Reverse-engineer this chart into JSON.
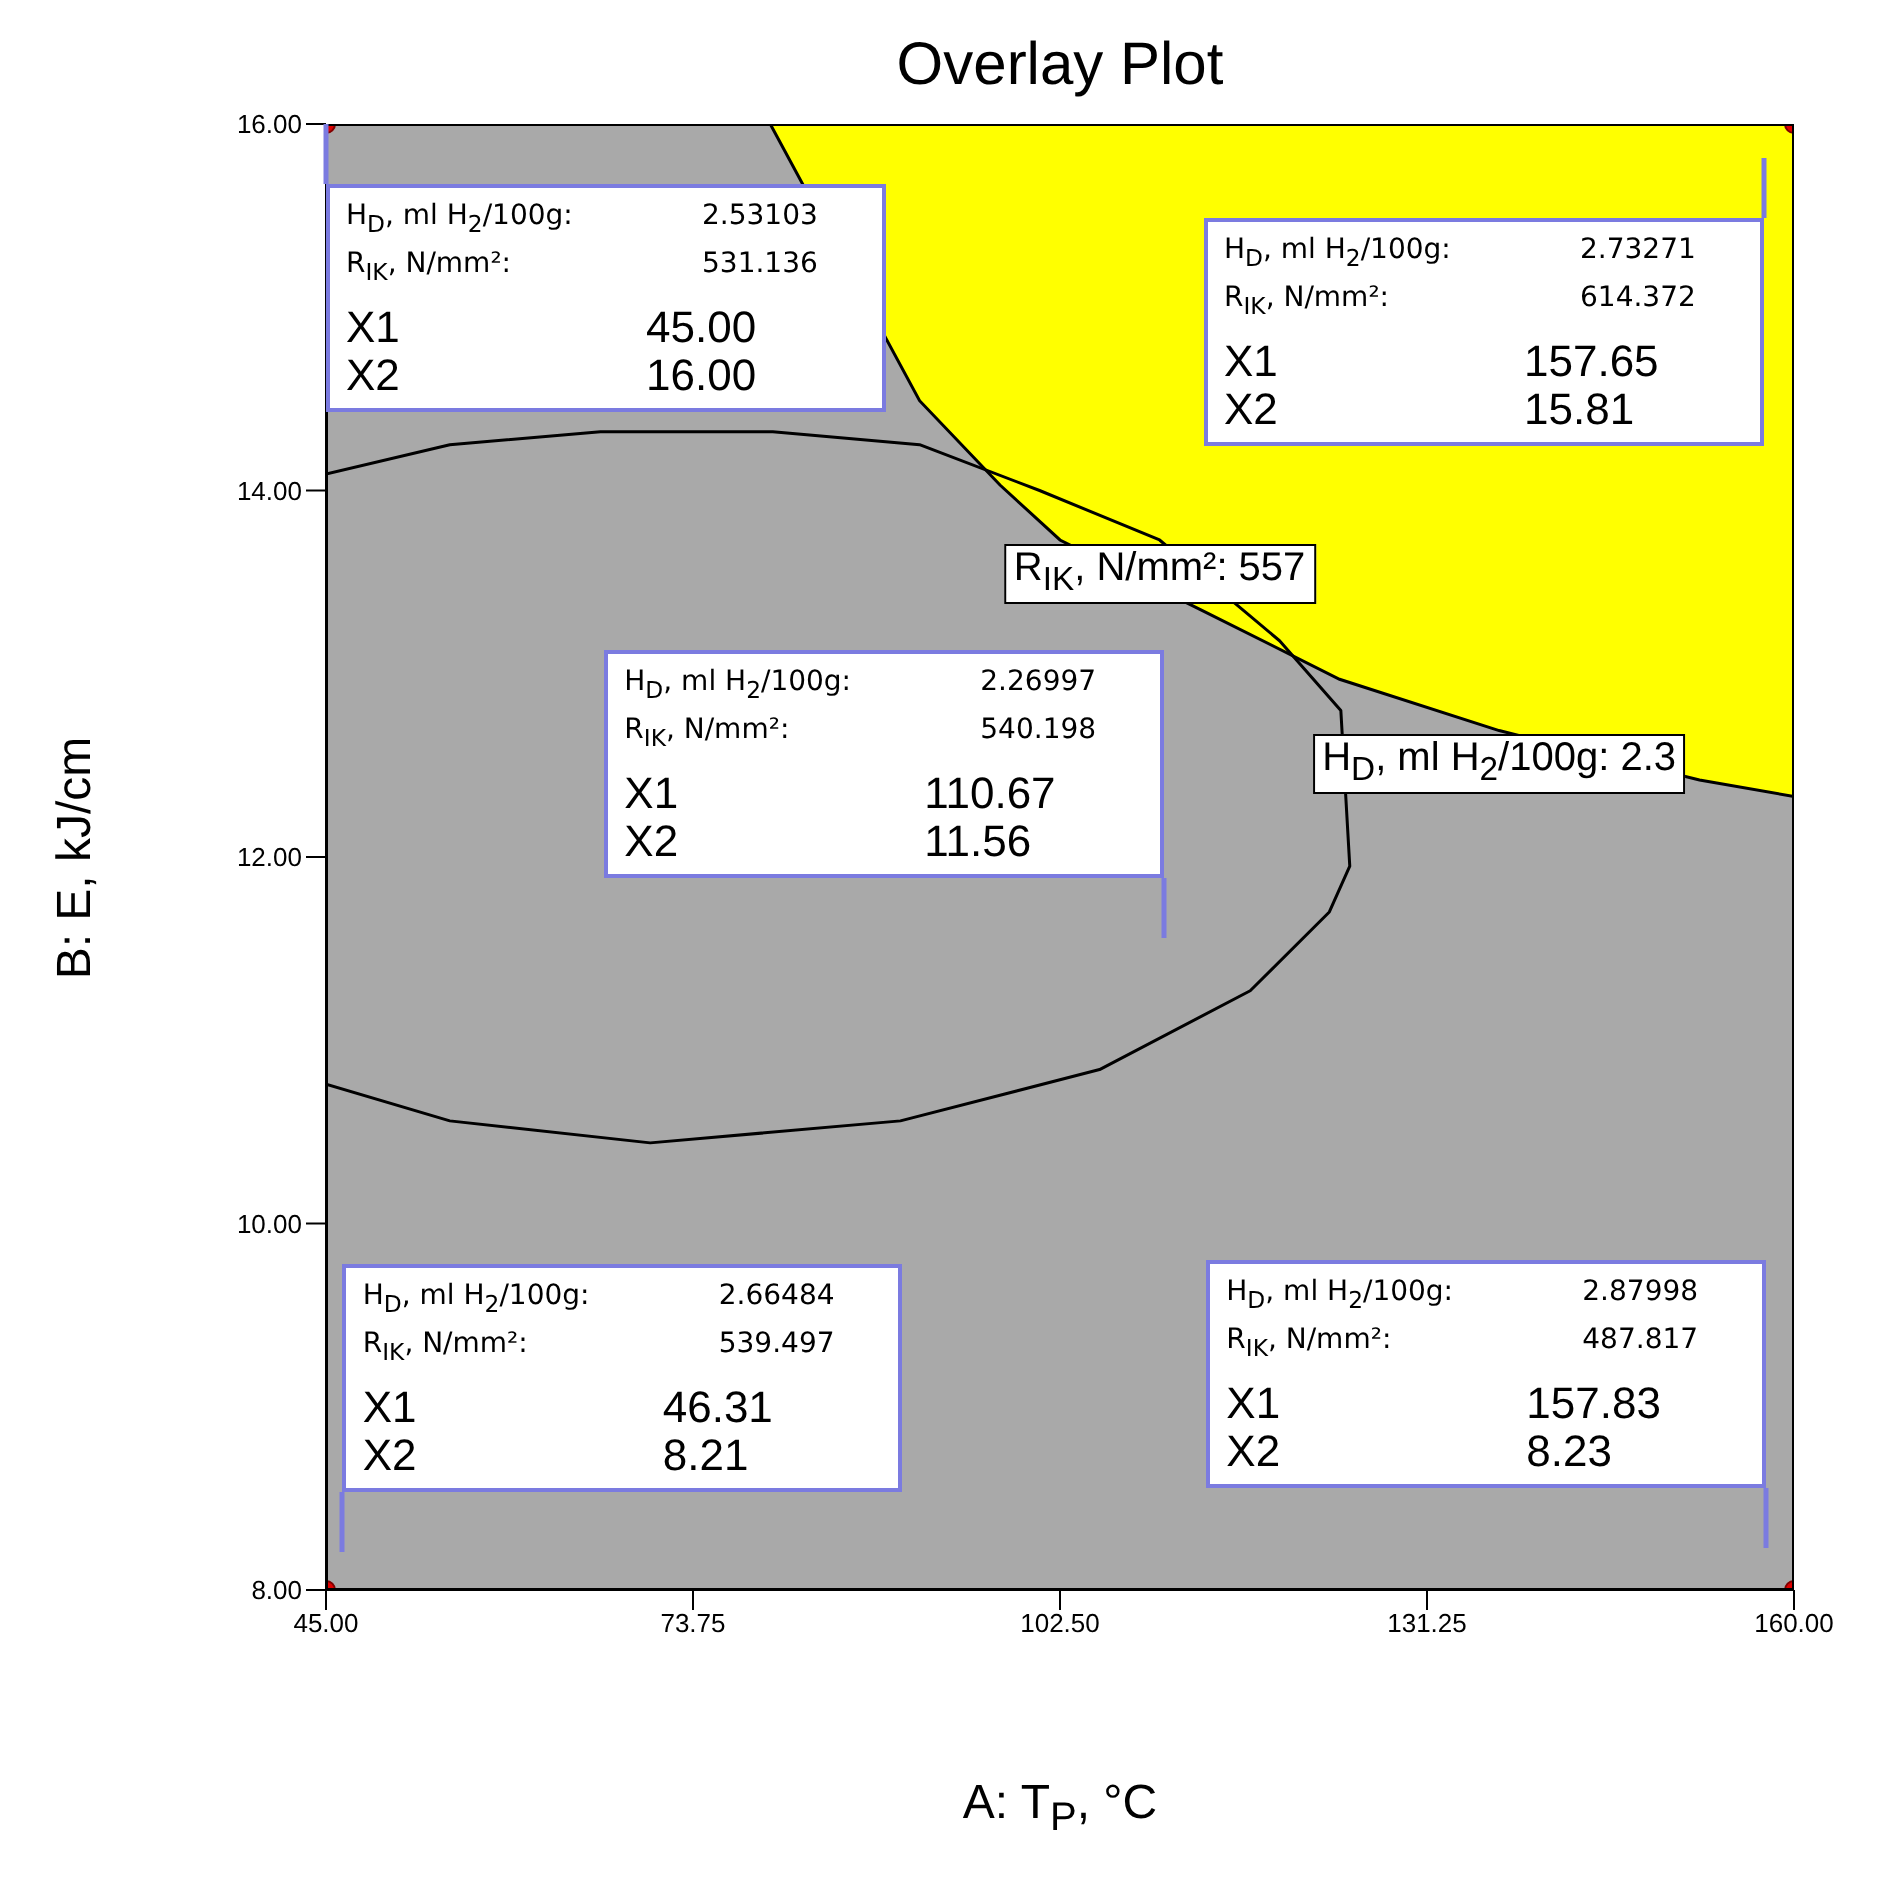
{
  "chart_data": {
    "type": "scatter",
    "title": "Overlay Plot",
    "xlabel": "A: T$_{P}$, °C",
    "ylabel": "B: E, kJ/cm",
    "xlim": [
      45,
      160
    ],
    "ylim": [
      8,
      16
    ],
    "xticks": [
      {
        "value": 45,
        "label": "45.00"
      },
      {
        "value": 73.75,
        "label": "73.75"
      },
      {
        "value": 102.5,
        "label": "102.50"
      },
      {
        "value": 131.25,
        "label": "131.25"
      },
      {
        "value": 160,
        "label": "160.00"
      }
    ],
    "yticks": [
      {
        "value": 8,
        "label": "8.00"
      },
      {
        "value": 10,
        "label": "10.00"
      },
      {
        "value": 12,
        "label": "12.00"
      },
      {
        "value": 14,
        "label": "14.00"
      },
      {
        "value": 16,
        "label": "16.00"
      }
    ],
    "grid": false,
    "legend": false,
    "line_style": "solid",
    "series": [
      {
        "type": "area",
        "color": "#a9a9a9",
        "x": [
          45,
          79.8,
          91.5,
          97.8,
          102.5,
          113.5,
          124.4,
          136.9,
          152.6,
          160
        ],
        "values": [
          16,
          16,
          14.49,
          14.03,
          13.73,
          13.35,
          12.97,
          12.69,
          12.42,
          12.33
        ]
      },
      {
        "type": "line",
        "color": "#000000",
        "marker": "none",
        "x": [
          45,
          54.7,
          66.5,
          80,
          91.5,
          100.9,
          110.3,
          119.7,
          124.5,
          125.2,
          123.6,
          117.4,
          105.6,
          90,
          70.4,
          54.7,
          45
        ],
        "values": [
          14.09,
          14.25,
          14.32,
          14.32,
          14.25,
          14,
          13.73,
          13.18,
          12.8,
          11.95,
          11.7,
          11.27,
          10.84,
          10.56,
          10.44,
          10.56,
          10.76
        ]
      },
      {
        "type": "scatter",
        "color": "#e00000",
        "marker": "circle",
        "x": [
          45,
          160,
          45,
          160
        ],
        "values": [
          16,
          16,
          8,
          8
        ]
      }
    ],
    "annotations": [
      "H$_{D}$, ml H$_{2}$/100g:",
      "2.53103",
      "R$_{IK}$, N/mm²:",
      "531.136",
      "X1",
      "45.00",
      "X2",
      "16.00",
      "H$_{D}$, ml H$_{2}$/100g:",
      "2.73271",
      "R$_{IK}$, N/mm²:",
      "614.372",
      "X1",
      "157.65",
      "X2",
      "15.81",
      "H$_{D}$, ml H$_{2}$/100g:",
      "2.26997",
      "R$_{IK}$, N/mm²:",
      "540.198",
      "X1",
      "110.67",
      "X2",
      "11.56",
      "H$_{D}$, ml H$_{2}$/100g:",
      "2.66484",
      "R$_{IK}$, N/mm²:",
      "539.497",
      "X1",
      "46.31",
      "X2",
      "8.21",
      "H$_{D}$, ml H$_{2}$/100g:",
      "2.87998",
      "R$_{IK}$, N/mm²:",
      "487.817",
      "X1",
      "157.83",
      "X2",
      "8.23",
      {
        "text": "R$_{IK}$, N/mm²: 557",
        "x": 110.3,
        "y": 13.73
      },
      {
        "text": "H$_{D}$, ml H$_{2}$/100g: 2.3",
        "x": 136.9,
        "y": 12.69
      }
    ]
  }
}
